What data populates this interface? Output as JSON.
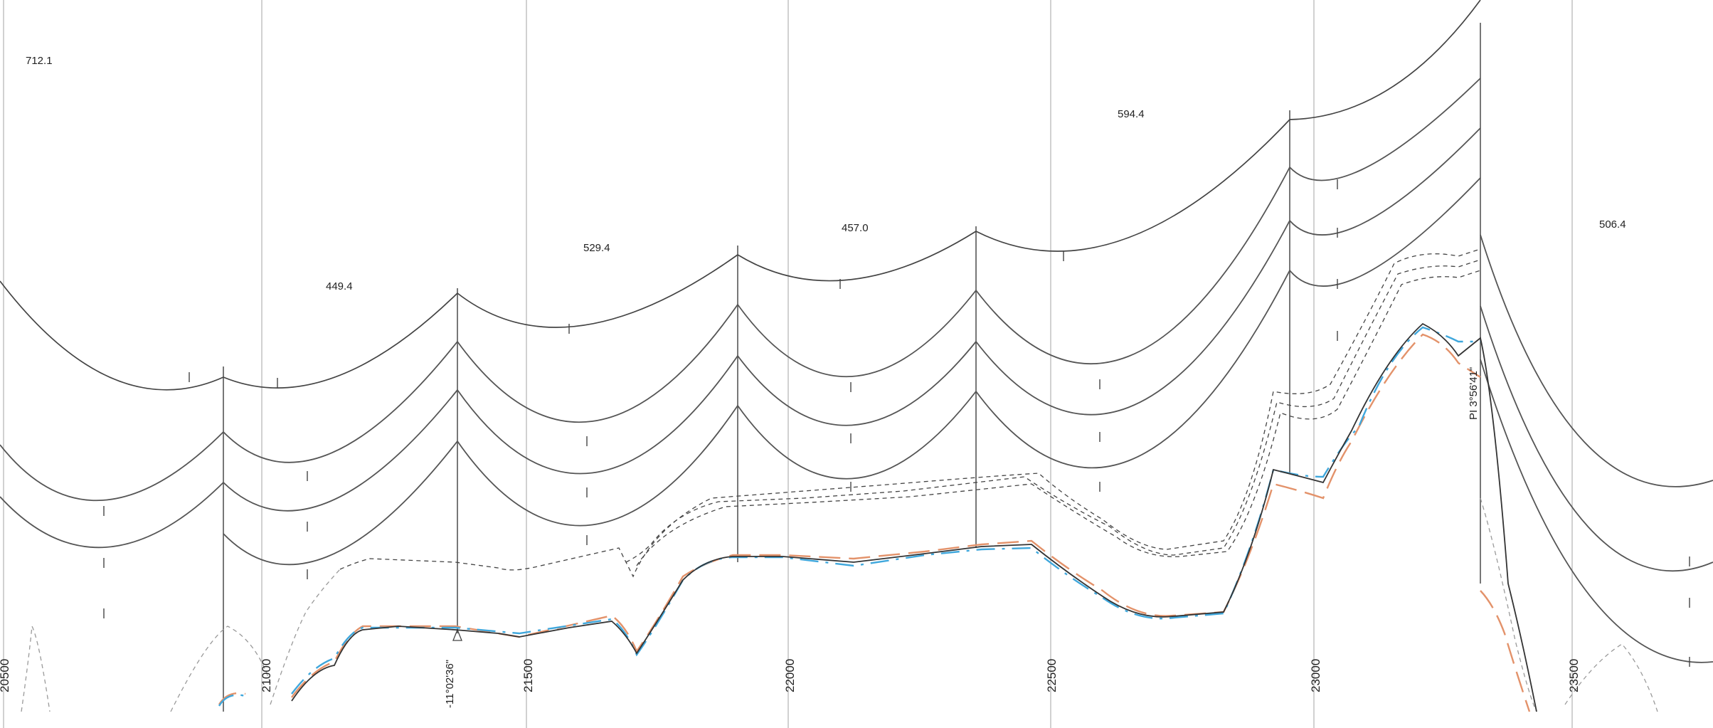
{
  "span_labels": [
    {
      "id": "s1",
      "text": "712.1"
    },
    {
      "id": "s2",
      "text": "449.4"
    },
    {
      "id": "s3",
      "text": "529.4"
    },
    {
      "id": "s4",
      "text": "457.0"
    },
    {
      "id": "s5",
      "text": "594.4"
    },
    {
      "id": "s6",
      "text": "506.4"
    }
  ],
  "station_labels": [
    {
      "id": "st20500",
      "text": "20500"
    },
    {
      "id": "st21000",
      "text": "21000"
    },
    {
      "id": "st21500",
      "text": "21500"
    },
    {
      "id": "st22000",
      "text": "22000"
    },
    {
      "id": "st22500",
      "text": "22500"
    },
    {
      "id": "st23000",
      "text": "23000"
    },
    {
      "id": "st23500",
      "text": "23500"
    }
  ],
  "angle_labels": [
    {
      "id": "a1",
      "text": "-11°02'36\""
    },
    {
      "id": "a2",
      "text": "PI 3°56'41\""
    }
  ],
  "colors": {
    "conductor": "#555555",
    "ground_profile": "#333333",
    "ground_survey_blue": "#3fa7dc",
    "ground_survey_orange": "#e3926a",
    "gridline": "#b8b8b8"
  }
}
